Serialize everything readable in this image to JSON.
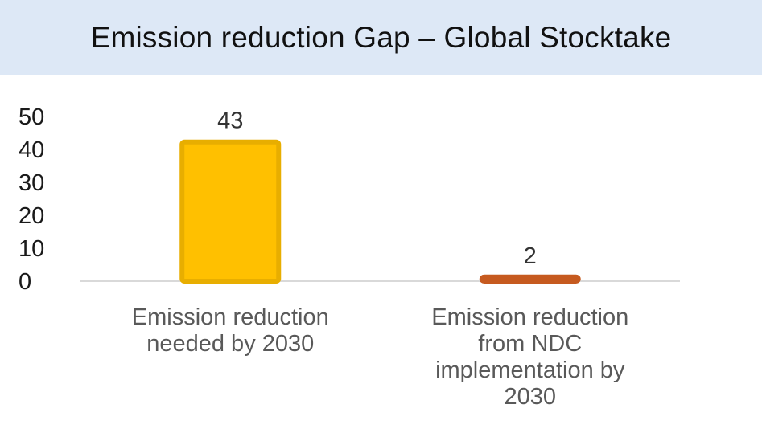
{
  "chart_data": {
    "type": "bar",
    "title": "Emission reduction Gap – Global Stocktake",
    "categories": [
      [
        "Emission reduction",
        "needed by 2030"
      ],
      [
        "Emission reduction",
        "from NDC",
        "implementation by",
        "2030"
      ]
    ],
    "values": [
      43,
      2
    ],
    "data_labels": [
      "43",
      "2"
    ],
    "y_ticks": [
      "0",
      "10",
      "20",
      "30",
      "40",
      "50"
    ],
    "ylim": [
      0,
      50
    ],
    "grid": false,
    "legend": "none",
    "colors": {
      "bar_fills": [
        "#FFC000",
        "#E46C2A"
      ],
      "bar_borders": [
        "#E8AE00",
        "#C65A1F"
      ],
      "title_band": "#DDE8F6",
      "axis_line": "#D9D9D9"
    }
  }
}
